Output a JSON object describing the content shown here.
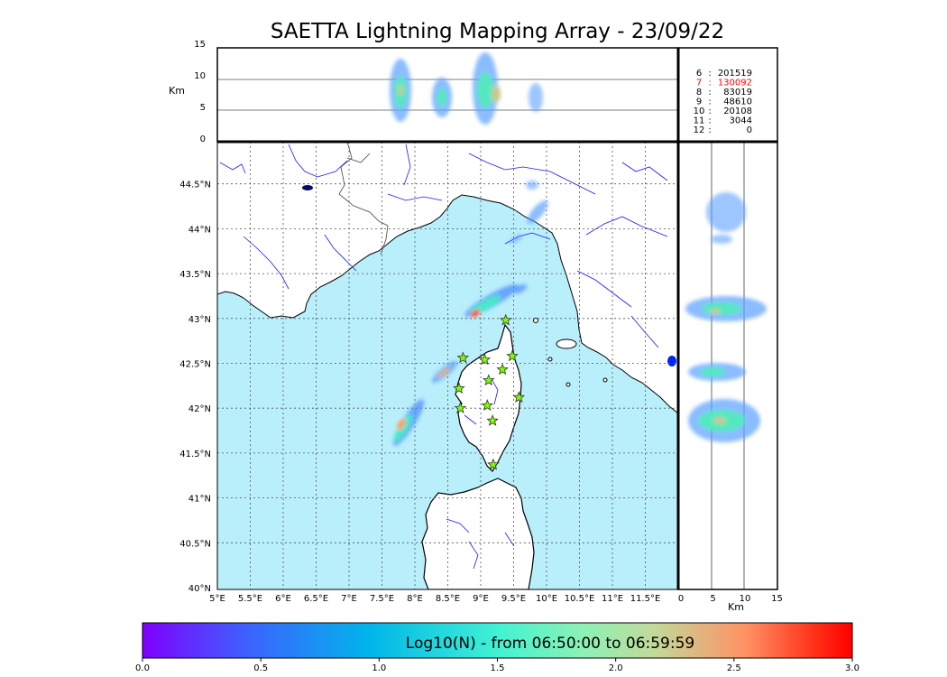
{
  "title": "SAETTA Lightning Mapping Array - 23/09/22",
  "altitude_axis": {
    "unit": "Km",
    "ticks": [
      "0",
      "5",
      "10",
      "15"
    ]
  },
  "stations_table": [
    {
      "id": "6",
      "sep": ":",
      "count": "201519",
      "highlight": false
    },
    {
      "id": "7",
      "sep": ":",
      "count": "130092",
      "highlight": true
    },
    {
      "id": "8",
      "sep": ":",
      "count": "83019",
      "highlight": false
    },
    {
      "id": "9",
      "sep": ":",
      "count": "48610",
      "highlight": false
    },
    {
      "id": "10",
      "sep": ":",
      "count": "20108",
      "highlight": false
    },
    {
      "id": "11",
      "sep": ":",
      "count": "3044",
      "highlight": false
    },
    {
      "id": "12",
      "sep": ":",
      "count": "0",
      "highlight": false
    }
  ],
  "map": {
    "lon_labels": [
      "5°E",
      "5.5°E",
      "6°E",
      "6.5°E",
      "7°E",
      "7.5°E",
      "8°E",
      "8.5°E",
      "9°E",
      "9.5°E",
      "10°E",
      "10.5°E",
      "11°E",
      "11.5°E"
    ],
    "lat_labels": [
      "40°N",
      "40.5°N",
      "41°N",
      "41.5°N",
      "42°N",
      "42.5°N",
      "43°N",
      "43.5°N",
      "44°N",
      "44.5°N"
    ],
    "lon_range": [
      5,
      12
    ],
    "lat_range": [
      40,
      45
    ],
    "sea_color": "#b9eefb",
    "land_color": "#ffffff",
    "river_color": "#1a1aff",
    "station_marker_color": "#7cfc00",
    "stations": [
      {
        "lon": 9.38,
        "lat": 42.98
      },
      {
        "lon": 8.73,
        "lat": 42.56
      },
      {
        "lon": 9.06,
        "lat": 42.54
      },
      {
        "lon": 9.48,
        "lat": 42.58
      },
      {
        "lon": 9.33,
        "lat": 42.43
      },
      {
        "lon": 9.12,
        "lat": 42.31
      },
      {
        "lon": 8.67,
        "lat": 42.22
      },
      {
        "lon": 9.58,
        "lat": 42.12
      },
      {
        "lon": 8.69,
        "lat": 42.0
      },
      {
        "lon": 9.1,
        "lat": 42.03
      },
      {
        "lon": 9.18,
        "lat": 41.86
      },
      {
        "lon": 9.19,
        "lat": 41.37
      }
    ]
  },
  "colorbar": {
    "label": "Log10(N) - from 06:50:00 to 06:59:59",
    "ticks": [
      "0.0",
      "0.5",
      "1.0",
      "1.5",
      "2.0",
      "2.5",
      "3.0"
    ],
    "range": [
      0,
      3
    ],
    "colors": [
      "#7f00ff",
      "#3c63ff",
      "#00b5eb",
      "#41f2d3",
      "#8cf1b6",
      "#c1da9a",
      "#ff9163",
      "#ff2e17",
      "#ff0000"
    ]
  }
}
